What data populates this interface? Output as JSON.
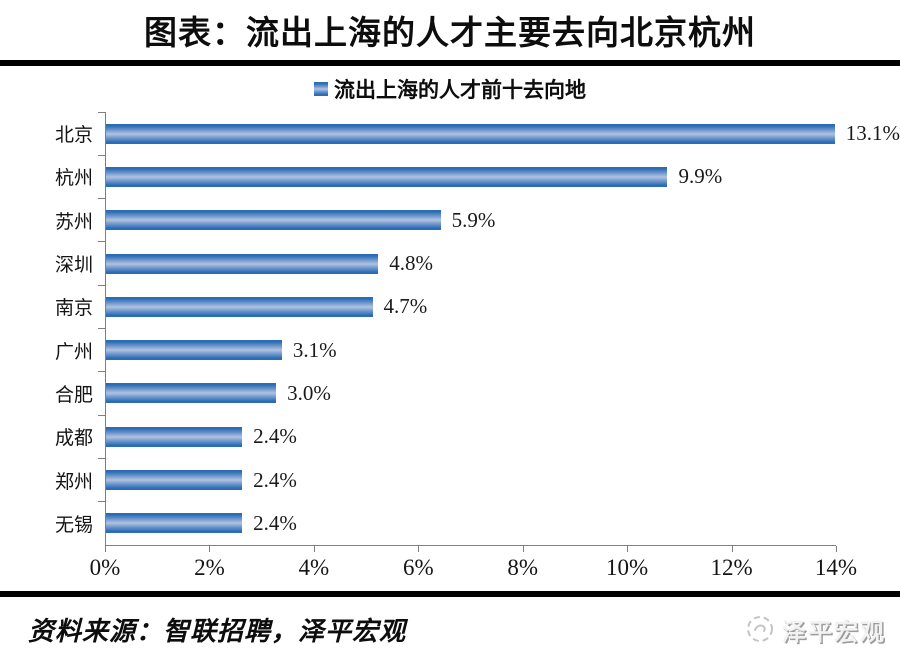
{
  "header": {
    "title": "图表：流出上海的人才主要去向北京杭州"
  },
  "chart_data": {
    "type": "bar",
    "orientation": "horizontal",
    "title": "流出上海的人才前十去向地",
    "legend": "流出上海的人才前十去向地",
    "categories": [
      "北京",
      "杭州",
      "苏州",
      "深圳",
      "南京",
      "广州",
      "合肥",
      "成都",
      "郑州",
      "无锡"
    ],
    "values": [
      13.1,
      9.9,
      5.9,
      4.8,
      4.7,
      3.1,
      3.0,
      2.4,
      2.4,
      2.4
    ],
    "value_labels": [
      "13.1%",
      "9.9%",
      "5.9%",
      "4.8%",
      "4.7%",
      "3.1%",
      "3.0%",
      "2.4%",
      "2.4%",
      "2.4%"
    ],
    "xlim": [
      0,
      14
    ],
    "x_ticks": [
      "0%",
      "2%",
      "4%",
      "6%",
      "8%",
      "10%",
      "12%",
      "14%"
    ],
    "grid": "off",
    "legend_position": "top-center",
    "bar_color_edge": "#2b6cb4",
    "bar_color_center": "#b3c2dd"
  },
  "footer": {
    "source": "资料来源：智联招聘，泽平宏观",
    "brand": "泽平宏观"
  }
}
